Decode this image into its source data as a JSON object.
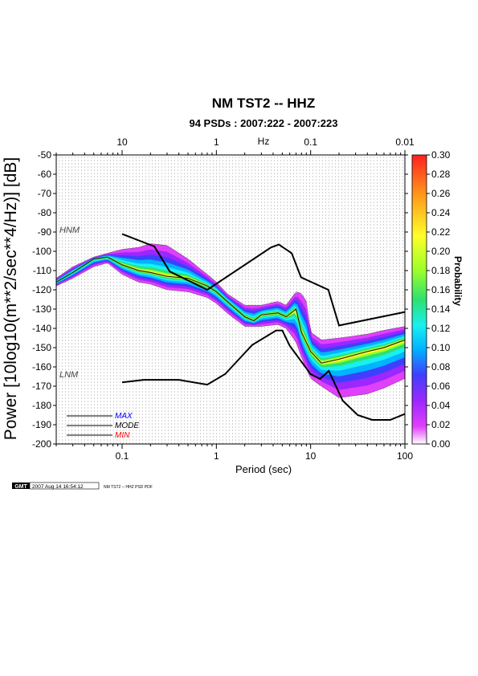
{
  "chart_data": {
    "type": "heatmap",
    "title": "NM TST2 -- HHZ",
    "subtitle": "94 PSDs : 2007:222 - 2007:223",
    "xlabel": "Period (sec)",
    "ylabel": "Power [10log10(m**2/sec**4/Hz)] [dB]",
    "top_axis_label": "Hz",
    "x_scale": "log",
    "xlim": [
      0.02,
      100
    ],
    "ylim": [
      -200,
      -50
    ],
    "x_ticks": [
      0.1,
      1,
      10,
      100
    ],
    "x_tick_labels": [
      "0.1",
      "1",
      "10",
      "100"
    ],
    "top_ticks_hz": [
      10,
      1,
      0.1,
      0.01
    ],
    "top_tick_labels": [
      "10",
      "1",
      "0.1",
      "0.01"
    ],
    "y_ticks": [
      -50,
      -60,
      -70,
      -80,
      -90,
      -100,
      -110,
      -120,
      -130,
      -140,
      -150,
      -160,
      -170,
      -180,
      -190,
      -200
    ],
    "y_tick_labels": [
      "-50",
      "-60",
      "-70",
      "-80",
      "-90",
      "-100",
      "-110",
      "-120",
      "-130",
      "-140",
      "-150",
      "-160",
      "-170",
      "-180",
      "-190",
      "-200"
    ],
    "grid": true,
    "colorbar": {
      "label": "Probability",
      "range": [
        0,
        0.3
      ],
      "tick_labels": [
        "0.00",
        "0.02",
        "0.04",
        "0.06",
        "0.08",
        "0.10",
        "0.12",
        "0.14",
        "0.16",
        "0.18",
        "0.20",
        "0.22",
        "0.24",
        "0.26",
        "0.28",
        "0.30"
      ],
      "colors": [
        "#ffffff",
        "#e040fb",
        "#9c27ff",
        "#3f3fff",
        "#00b4ff",
        "#19f0f0",
        "#2fe070",
        "#9aff2a",
        "#ffff2a",
        "#ff9a1a",
        "#ff2020"
      ]
    },
    "noise_models": [
      {
        "name": "HNM",
        "points": [
          [
            0.1,
            -91
          ],
          [
            0.22,
            -97.5
          ],
          [
            0.32,
            -110.5
          ],
          [
            0.8,
            -120
          ],
          [
            3.8,
            -98
          ],
          [
            4.6,
            -96.5
          ],
          [
            6.3,
            -101
          ],
          [
            7.9,
            -113.5
          ],
          [
            15.4,
            -120
          ],
          [
            20,
            -138.5
          ],
          [
            100,
            -131.5
          ]
        ]
      },
      {
        "name": "LNM",
        "points": [
          [
            0.1,
            -168
          ],
          [
            0.17,
            -166.7
          ],
          [
            0.4,
            -166.7
          ],
          [
            0.8,
            -169.2
          ],
          [
            1.24,
            -163.7
          ],
          [
            2.4,
            -148.6
          ],
          [
            4.3,
            -141.1
          ],
          [
            5,
            -141.1
          ],
          [
            6,
            -149
          ],
          [
            10,
            -163.8
          ],
          [
            12.6,
            -166.2
          ],
          [
            15.6,
            -162.1
          ],
          [
            21.9,
            -177.5
          ],
          [
            31.6,
            -185
          ],
          [
            45,
            -187.5
          ],
          [
            70,
            -187.5
          ],
          [
            100,
            -184.4
          ]
        ]
      }
    ],
    "psd_bands": [
      {
        "name": "MAX",
        "points": [
          [
            0.02,
            -114
          ],
          [
            0.03,
            -108
          ],
          [
            0.05,
            -103
          ],
          [
            0.07,
            -101
          ],
          [
            0.1,
            -99
          ],
          [
            0.15,
            -98
          ],
          [
            0.2,
            -96
          ],
          [
            0.3,
            -97
          ],
          [
            0.5,
            -104
          ],
          [
            0.8,
            -112
          ],
          [
            1,
            -116
          ],
          [
            1.3,
            -122
          ],
          [
            2,
            -128
          ],
          [
            3,
            -128
          ],
          [
            4.5,
            -126
          ],
          [
            5.5,
            -128
          ],
          [
            7,
            -121
          ],
          [
            8,
            -122
          ],
          [
            9,
            -126
          ],
          [
            10,
            -142
          ],
          [
            13,
            -146
          ],
          [
            20,
            -145
          ],
          [
            40,
            -143
          ],
          [
            60,
            -141
          ],
          [
            100,
            -139
          ]
        ]
      },
      {
        "name": "MODE",
        "points": [
          [
            0.02,
            -116
          ],
          [
            0.03,
            -111
          ],
          [
            0.05,
            -104
          ],
          [
            0.07,
            -103
          ],
          [
            0.1,
            -107
          ],
          [
            0.15,
            -110
          ],
          [
            0.2,
            -111
          ],
          [
            0.3,
            -113
          ],
          [
            0.5,
            -114
          ],
          [
            0.8,
            -118
          ],
          [
            1,
            -121
          ],
          [
            1.3,
            -126
          ],
          [
            2,
            -134
          ],
          [
            2.5,
            -136
          ],
          [
            3,
            -133
          ],
          [
            4.5,
            -132
          ],
          [
            5.5,
            -134
          ],
          [
            7,
            -130
          ],
          [
            8,
            -142
          ],
          [
            10,
            -152
          ],
          [
            13,
            -158
          ],
          [
            20,
            -156
          ],
          [
            40,
            -152
          ],
          [
            60,
            -150
          ],
          [
            100,
            -146
          ]
        ]
      },
      {
        "name": "MIN",
        "points": [
          [
            0.02,
            -118
          ],
          [
            0.03,
            -114
          ],
          [
            0.05,
            -108
          ],
          [
            0.07,
            -106
          ],
          [
            0.1,
            -112
          ],
          [
            0.15,
            -116
          ],
          [
            0.2,
            -117
          ],
          [
            0.3,
            -120
          ],
          [
            0.5,
            -121
          ],
          [
            0.8,
            -124
          ],
          [
            1,
            -127
          ],
          [
            1.3,
            -132
          ],
          [
            2,
            -139
          ],
          [
            3,
            -139
          ],
          [
            4.5,
            -138
          ],
          [
            5.5,
            -140
          ],
          [
            7,
            -147
          ],
          [
            8,
            -155
          ],
          [
            10,
            -166
          ],
          [
            13,
            -170
          ],
          [
            20,
            -176
          ],
          [
            40,
            -174
          ],
          [
            60,
            -171
          ],
          [
            100,
            -166
          ]
        ]
      }
    ],
    "legend": {
      "position": "bottom-left",
      "entries": [
        "MAX",
        "MODE",
        "MIN"
      ],
      "colors": [
        "#0000ff",
        "#000000",
        "#ff0000"
      ]
    }
  },
  "footer": {
    "logo_text": "GMT",
    "timestamp": "2007 Aug 14 16:54:12",
    "caption": "NM TST2 -- HHZ PSD PDF"
  }
}
